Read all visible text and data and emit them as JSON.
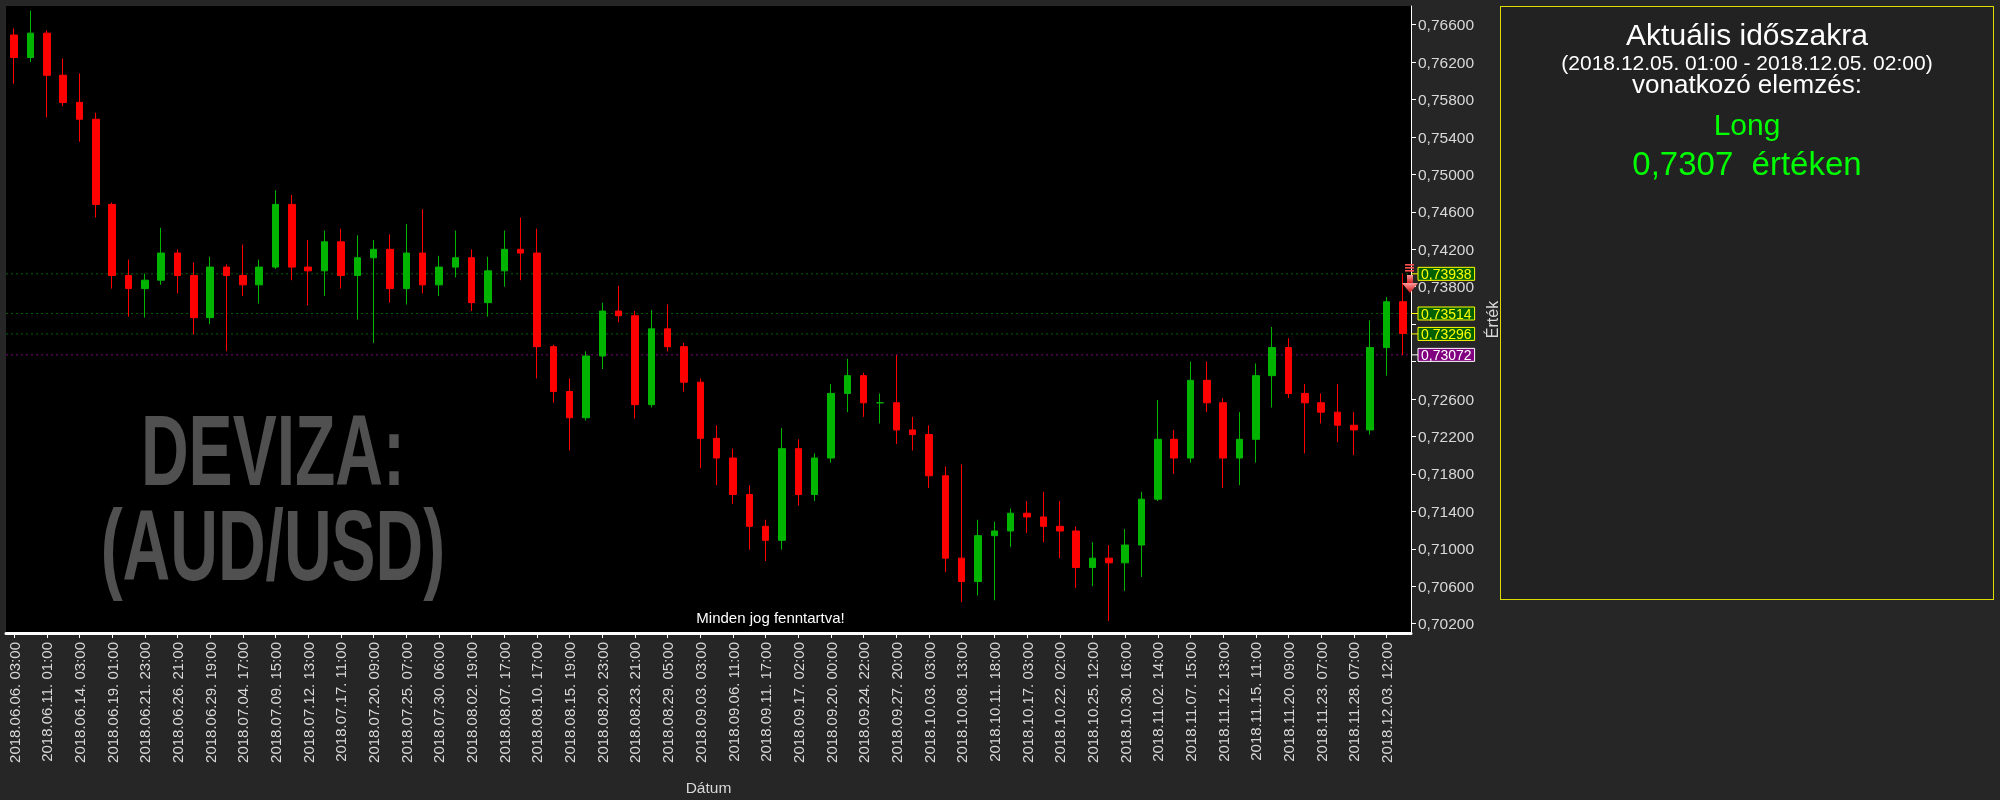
{
  "chart_data": [
    {
      "type": "candlestick",
      "title": "DEVIZA: (AUD/USD)",
      "xlabel": "Dátum",
      "ylabel": "Érték",
      "categories": [
        "2018.06.06. 03:00",
        null,
        "2018.06.11. 01:00",
        null,
        "2018.06.14. 03:00",
        null,
        "2018.06.19. 01:00",
        null,
        "2018.06.21. 23:00",
        null,
        "2018.06.26. 21:00",
        null,
        "2018.06.29. 19:00",
        null,
        "2018.07.04. 17:00",
        null,
        "2018.07.09. 15:00",
        null,
        "2018.07.12. 13:00",
        null,
        "2018.07.17. 11:00",
        null,
        "2018.07.20. 09:00",
        null,
        "2018.07.25. 07:00",
        null,
        "2018.07.30. 06:00",
        null,
        "2018.08.02. 19:00",
        null,
        "2018.08.07. 17:00",
        null,
        "2018.08.10. 17:00",
        null,
        "2018.08.15. 19:00",
        null,
        "2018.08.20. 23:00",
        null,
        "2018.08.23. 21:00",
        null,
        "2018.08.29. 05:00",
        null,
        "2018.09.03. 03:00",
        null,
        "2018.09.06. 11:00",
        null,
        "2018.09.11. 17:00",
        null,
        "2018.09.17. 02:00",
        null,
        "2018.09.20. 00:00",
        null,
        "2018.09.24. 22:00",
        null,
        "2018.09.27. 20:00",
        null,
        "2018.10.03. 03:00",
        null,
        "2018.10.08. 13:00",
        null,
        "2018.10.11. 18:00",
        null,
        "2018.10.17. 03:00",
        null,
        "2018.10.22. 02:00",
        null,
        "2018.10.25. 12:00",
        null,
        "2018.10.30. 16:00",
        null,
        "2018.11.02. 14:00",
        null,
        "2018.11.07. 15:00",
        null,
        "2018.11.12. 13:00",
        null,
        "2018.11.15. 11:00",
        null,
        "2018.11.20. 09:00",
        null,
        "2018.11.23. 07:00",
        null,
        "2018.11.28. 07:00",
        null,
        "2018.12.03. 12:00",
        null
      ],
      "ohlc": [
        [
          0.7649,
          0.7656,
          0.7597,
          0.7625
        ],
        [
          0.7625,
          0.7675,
          0.762,
          0.7651
        ],
        [
          0.7651,
          0.7654,
          0.7561,
          0.7606
        ],
        [
          0.7606,
          0.7624,
          0.7573,
          0.7577
        ],
        [
          0.7577,
          0.7608,
          0.7535,
          0.7559
        ],
        [
          0.7559,
          0.7566,
          0.7454,
          0.7468
        ],
        [
          0.7468,
          0.747,
          0.7378,
          0.7392
        ],
        [
          0.7392,
          0.7409,
          0.7348,
          0.7378
        ],
        [
          0.7378,
          0.7394,
          0.7347,
          0.7387
        ],
        [
          0.7387,
          0.7443,
          0.7382,
          0.7416
        ],
        [
          0.7416,
          0.742,
          0.7373,
          0.7392
        ],
        [
          0.7392,
          0.7406,
          0.7329,
          0.7347
        ],
        [
          0.7347,
          0.7412,
          0.734,
          0.7401
        ],
        [
          0.7401,
          0.7404,
          0.7311,
          0.7392
        ],
        [
          0.7392,
          0.7425,
          0.737,
          0.7382
        ],
        [
          0.7382,
          0.7409,
          0.7362,
          0.7401
        ],
        [
          0.7401,
          0.7483,
          0.7399,
          0.7468
        ],
        [
          0.7468,
          0.7478,
          0.7387,
          0.7401
        ],
        [
          0.7401,
          0.743,
          0.736,
          0.7397
        ],
        [
          0.7397,
          0.744,
          0.737,
          0.7428
        ],
        [
          0.7428,
          0.7442,
          0.7378,
          0.7392
        ],
        [
          0.7392,
          0.7435,
          0.7345,
          0.7411
        ],
        [
          0.7411,
          0.743,
          0.732,
          0.742
        ],
        [
          0.742,
          0.7436,
          0.7363,
          0.7378
        ],
        [
          0.7378,
          0.7447,
          0.7361,
          0.7416
        ],
        [
          0.7416,
          0.7463,
          0.7373,
          0.7382
        ],
        [
          0.7382,
          0.7413,
          0.737,
          0.7401
        ],
        [
          0.7401,
          0.744,
          0.739,
          0.7411
        ],
        [
          0.7411,
          0.742,
          0.7354,
          0.7363
        ],
        [
          0.7363,
          0.7412,
          0.7348,
          0.7397
        ],
        [
          0.7397,
          0.744,
          0.738,
          0.742
        ],
        [
          0.742,
          0.7454,
          0.7387,
          0.7416
        ],
        [
          0.7416,
          0.7442,
          0.7282,
          0.7316
        ],
        [
          0.7316,
          0.7318,
          0.7256,
          0.7268
        ],
        [
          0.7268,
          0.7282,
          0.7205,
          0.724
        ],
        [
          0.724,
          0.7311,
          0.7237,
          0.7306
        ],
        [
          0.7306,
          0.7363,
          0.7292,
          0.7354
        ],
        [
          0.7354,
          0.7381,
          0.7342,
          0.7349
        ],
        [
          0.7349,
          0.7354,
          0.7239,
          0.7254
        ],
        [
          0.7254,
          0.7355,
          0.7251,
          0.7335
        ],
        [
          0.7335,
          0.7361,
          0.7311,
          0.7316
        ],
        [
          0.7316,
          0.732,
          0.7268,
          0.7278
        ],
        [
          0.7278,
          0.7282,
          0.7186,
          0.7218
        ],
        [
          0.7218,
          0.7232,
          0.7168,
          0.7197
        ],
        [
          0.7197,
          0.7207,
          0.7148,
          0.7158
        ],
        [
          0.7158,
          0.7168,
          0.7099,
          0.7124
        ],
        [
          0.7124,
          0.7131,
          0.7087,
          0.7109
        ],
        [
          0.7109,
          0.7229,
          0.7099,
          0.7207
        ],
        [
          0.7207,
          0.7217,
          0.7146,
          0.7158
        ],
        [
          0.7158,
          0.7202,
          0.7151,
          0.7197
        ],
        [
          0.7197,
          0.7276,
          0.7192,
          0.7266
        ],
        [
          0.7266,
          0.7303,
          0.7246,
          0.7285
        ],
        [
          0.7285,
          0.7288,
          0.7241,
          0.7256
        ],
        [
          0.7256,
          0.7266,
          0.7234,
          0.7256
        ],
        [
          0.7256,
          0.7307,
          0.7212,
          0.7227
        ],
        [
          0.7227,
          0.7241,
          0.7205,
          0.7222
        ],
        [
          0.7222,
          0.7232,
          0.7165,
          0.7178
        ],
        [
          0.7178,
          0.7188,
          0.7075,
          0.709
        ],
        [
          0.709,
          0.719,
          0.7043,
          0.7065
        ],
        [
          0.7065,
          0.7131,
          0.705,
          0.7114
        ],
        [
          0.7114,
          0.7129,
          0.7045,
          0.7119
        ],
        [
          0.7119,
          0.7143,
          0.7102,
          0.7138
        ],
        [
          0.7138,
          0.7151,
          0.7117,
          0.7134
        ],
        [
          0.7134,
          0.7161,
          0.7107,
          0.7124
        ],
        [
          0.7124,
          0.7151,
          0.709,
          0.7119
        ],
        [
          0.7119,
          0.7124,
          0.7058,
          0.708
        ],
        [
          0.708,
          0.7107,
          0.706,
          0.709
        ],
        [
          0.709,
          0.7104,
          0.7023,
          0.7085
        ],
        [
          0.7085,
          0.7121,
          0.7055,
          0.7104
        ],
        [
          0.7104,
          0.7161,
          0.707,
          0.7153
        ],
        [
          0.7153,
          0.7259,
          0.7151,
          0.7217
        ],
        [
          0.7217,
          0.7227,
          0.718,
          0.7197
        ],
        [
          0.7197,
          0.73,
          0.7192,
          0.728
        ],
        [
          0.728,
          0.73,
          0.7246,
          0.7256
        ],
        [
          0.7256,
          0.7261,
          0.7165,
          0.7197
        ],
        [
          0.7197,
          0.7246,
          0.7168,
          0.7217
        ],
        [
          0.7217,
          0.7298,
          0.7192,
          0.7285
        ],
        [
          0.7285,
          0.7337,
          0.7251,
          0.7315
        ],
        [
          0.7315,
          0.7325,
          0.7261,
          0.7266
        ],
        [
          0.7266,
          0.7276,
          0.7202,
          0.7256
        ],
        [
          0.7256,
          0.7266,
          0.7234,
          0.7246
        ],
        [
          0.7246,
          0.7276,
          0.7214,
          0.7232
        ],
        [
          0.7232,
          0.7246,
          0.72,
          0.7227
        ],
        [
          0.7227,
          0.7344,
          0.7222,
          0.7315
        ],
        [
          0.7315,
          0.7369,
          0.7285,
          0.7364
        ],
        [
          0.7364,
          0.7394,
          0.7307,
          0.733
        ]
      ],
      "ylim": [
        0.701,
        0.768
      ],
      "yticks": [
        {
          "value": 0.702,
          "label": "0,70200"
        },
        {
          "value": 0.706,
          "label": "0,70600"
        },
        {
          "value": 0.71,
          "label": "0,71000"
        },
        {
          "value": 0.714,
          "label": "0,71400"
        },
        {
          "value": 0.718,
          "label": "0,71800"
        },
        {
          "value": 0.722,
          "label": "0,72200"
        },
        {
          "value": 0.726,
          "label": "0,72600"
        },
        {
          "value": 0.73,
          "label": null
        },
        {
          "value": 0.734,
          "label": null
        },
        {
          "value": 0.738,
          "label": "0,73800"
        },
        {
          "value": 0.742,
          "label": "0,74200"
        },
        {
          "value": 0.746,
          "label": "0,74600"
        },
        {
          "value": 0.75,
          "label": "0,75000"
        },
        {
          "value": 0.754,
          "label": "0,75400"
        },
        {
          "value": 0.758,
          "label": "0,75800"
        },
        {
          "value": 0.762,
          "label": "0,76200"
        },
        {
          "value": 0.766,
          "label": "0,76600"
        }
      ],
      "ref_lines": [
        {
          "axis": "y",
          "value": 0.73938,
          "label": "0,73938",
          "color": "#006000",
          "line_style": "dotted"
        },
        {
          "axis": "y",
          "value": 0.73514,
          "label": "0,73514",
          "color": "#006000",
          "line_style": "dotted"
        },
        {
          "axis": "y",
          "value": 0.73296,
          "label": "0,73296",
          "color": "#006000",
          "line_style": "dotted"
        },
        {
          "axis": "y",
          "value": 0.73072,
          "label": "0,73072",
          "color": "#800080",
          "line_style": "dotted"
        }
      ],
      "annotations": [
        "Minden jog fenntartva!"
      ]
    },
    {
      "type": "other",
      "title": "Aktuális időszakra",
      "subtitle": "(2018.12.05. 01:00 - 2018.12.05. 02:00)",
      "annotations": [
        "vonatkozó elemzés:",
        "Long",
        "0,7307  értéken"
      ]
    }
  ]
}
